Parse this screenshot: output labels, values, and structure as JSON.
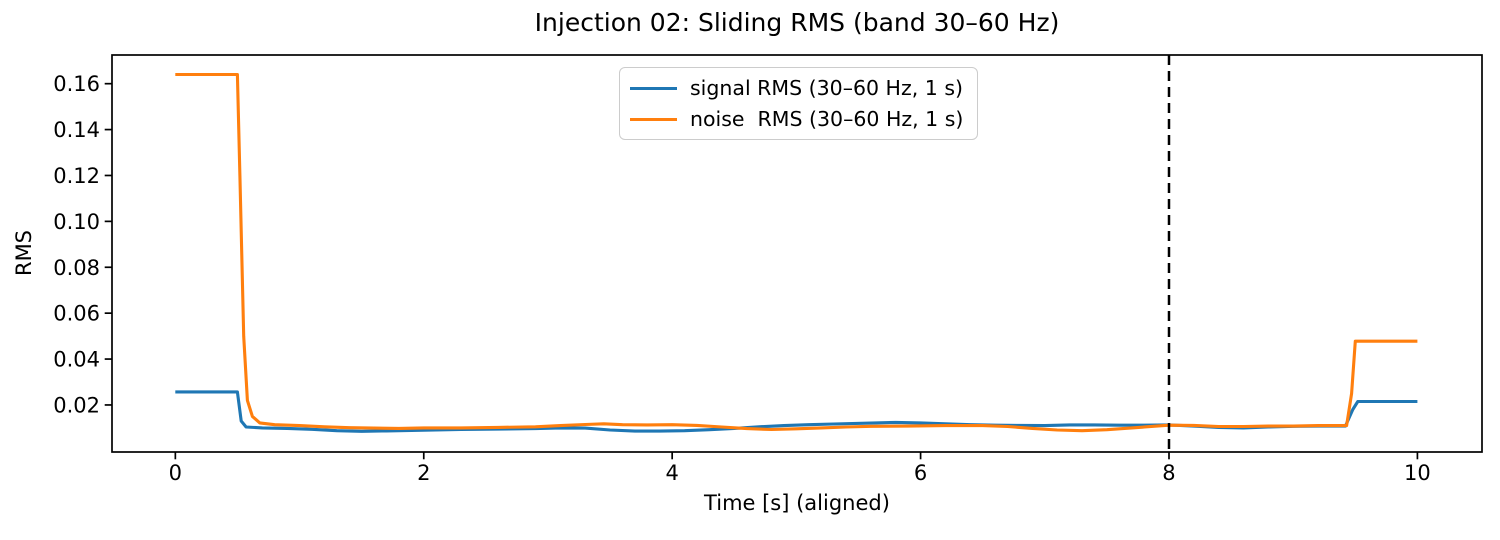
{
  "figure": {
    "background": "#ffffff"
  },
  "chart_data": {
    "type": "line",
    "title": "Injection 02: Sliding RMS (band 30–60 Hz)",
    "xlabel": "Time [s] (aligned)",
    "ylabel": "RMS",
    "xlim": [
      -0.51,
      10.52
    ],
    "ylim": [
      -0.0005,
      0.1725
    ],
    "xticks": [
      0,
      2,
      4,
      6,
      8,
      10
    ],
    "yticks": [
      0.02,
      0.04,
      0.06,
      0.08,
      0.1,
      0.12,
      0.14,
      0.16
    ],
    "grid": false,
    "legend": {
      "position": "upper center",
      "border_color": "#cccccc"
    },
    "annotations": [
      {
        "type": "vline",
        "x": 8,
        "linestyle": "dashed",
        "color": "#000000"
      }
    ],
    "series": [
      {
        "name": "signal RMS (30–60 Hz, 1 s)",
        "color": "#1f77b4",
        "points": [
          [
            0.0,
            0.0257
          ],
          [
            0.5,
            0.0257
          ],
          [
            0.53,
            0.013
          ],
          [
            0.57,
            0.0104
          ],
          [
            0.7,
            0.01
          ],
          [
            0.9,
            0.0098
          ],
          [
            1.1,
            0.0094
          ],
          [
            1.3,
            0.0088
          ],
          [
            1.5,
            0.0085
          ],
          [
            1.7,
            0.0087
          ],
          [
            2.0,
            0.009
          ],
          [
            2.3,
            0.0093
          ],
          [
            2.6,
            0.0095
          ],
          [
            2.9,
            0.0097
          ],
          [
            3.1,
            0.01
          ],
          [
            3.3,
            0.0099
          ],
          [
            3.5,
            0.0091
          ],
          [
            3.7,
            0.0086
          ],
          [
            3.9,
            0.0086
          ],
          [
            4.1,
            0.0088
          ],
          [
            4.3,
            0.0092
          ],
          [
            4.5,
            0.0098
          ],
          [
            4.7,
            0.0105
          ],
          [
            4.9,
            0.011
          ],
          [
            5.1,
            0.0114
          ],
          [
            5.3,
            0.0117
          ],
          [
            5.6,
            0.0121
          ],
          [
            5.8,
            0.0124
          ],
          [
            6.0,
            0.0122
          ],
          [
            6.2,
            0.0118
          ],
          [
            6.4,
            0.0114
          ],
          [
            6.6,
            0.0112
          ],
          [
            6.8,
            0.0111
          ],
          [
            7.0,
            0.011
          ],
          [
            7.2,
            0.0113
          ],
          [
            7.4,
            0.0113
          ],
          [
            7.6,
            0.0112
          ],
          [
            7.8,
            0.0112
          ],
          [
            8.0,
            0.0113
          ],
          [
            8.2,
            0.0108
          ],
          [
            8.4,
            0.0102
          ],
          [
            8.6,
            0.01
          ],
          [
            8.8,
            0.0104
          ],
          [
            9.0,
            0.0107
          ],
          [
            9.2,
            0.0108
          ],
          [
            9.42,
            0.0108
          ],
          [
            9.48,
            0.018
          ],
          [
            9.52,
            0.0215
          ],
          [
            10.0,
            0.0215
          ]
        ]
      },
      {
        "name": "noise  RMS (30–60 Hz, 1 s)",
        "color": "#ff7f0e",
        "points": [
          [
            0.0,
            0.164
          ],
          [
            0.5,
            0.164
          ],
          [
            0.52,
            0.12
          ],
          [
            0.55,
            0.05
          ],
          [
            0.58,
            0.022
          ],
          [
            0.62,
            0.015
          ],
          [
            0.68,
            0.0122
          ],
          [
            0.8,
            0.0114
          ],
          [
            1.0,
            0.011
          ],
          [
            1.2,
            0.0105
          ],
          [
            1.4,
            0.0101
          ],
          [
            1.6,
            0.0099
          ],
          [
            1.8,
            0.0098
          ],
          [
            2.0,
            0.01
          ],
          [
            2.3,
            0.01
          ],
          [
            2.6,
            0.0102
          ],
          [
            2.9,
            0.0105
          ],
          [
            3.1,
            0.011
          ],
          [
            3.3,
            0.0115
          ],
          [
            3.45,
            0.0118
          ],
          [
            3.6,
            0.0114
          ],
          [
            3.8,
            0.0113
          ],
          [
            4.0,
            0.0114
          ],
          [
            4.2,
            0.0111
          ],
          [
            4.4,
            0.0104
          ],
          [
            4.6,
            0.0097
          ],
          [
            4.8,
            0.0093
          ],
          [
            5.0,
            0.0096
          ],
          [
            5.2,
            0.01
          ],
          [
            5.4,
            0.0104
          ],
          [
            5.6,
            0.0107
          ],
          [
            5.9,
            0.0108
          ],
          [
            6.2,
            0.011
          ],
          [
            6.5,
            0.011
          ],
          [
            6.7,
            0.0106
          ],
          [
            6.9,
            0.0098
          ],
          [
            7.1,
            0.0091
          ],
          [
            7.3,
            0.0088
          ],
          [
            7.5,
            0.0092
          ],
          [
            7.7,
            0.01
          ],
          [
            7.9,
            0.0108
          ],
          [
            8.0,
            0.0112
          ],
          [
            8.2,
            0.0111
          ],
          [
            8.4,
            0.0106
          ],
          [
            8.6,
            0.0106
          ],
          [
            8.8,
            0.0108
          ],
          [
            9.0,
            0.0108
          ],
          [
            9.2,
            0.011
          ],
          [
            9.43,
            0.011
          ],
          [
            9.47,
            0.025
          ],
          [
            9.5,
            0.0478
          ],
          [
            10.0,
            0.0478
          ]
        ]
      }
    ]
  }
}
